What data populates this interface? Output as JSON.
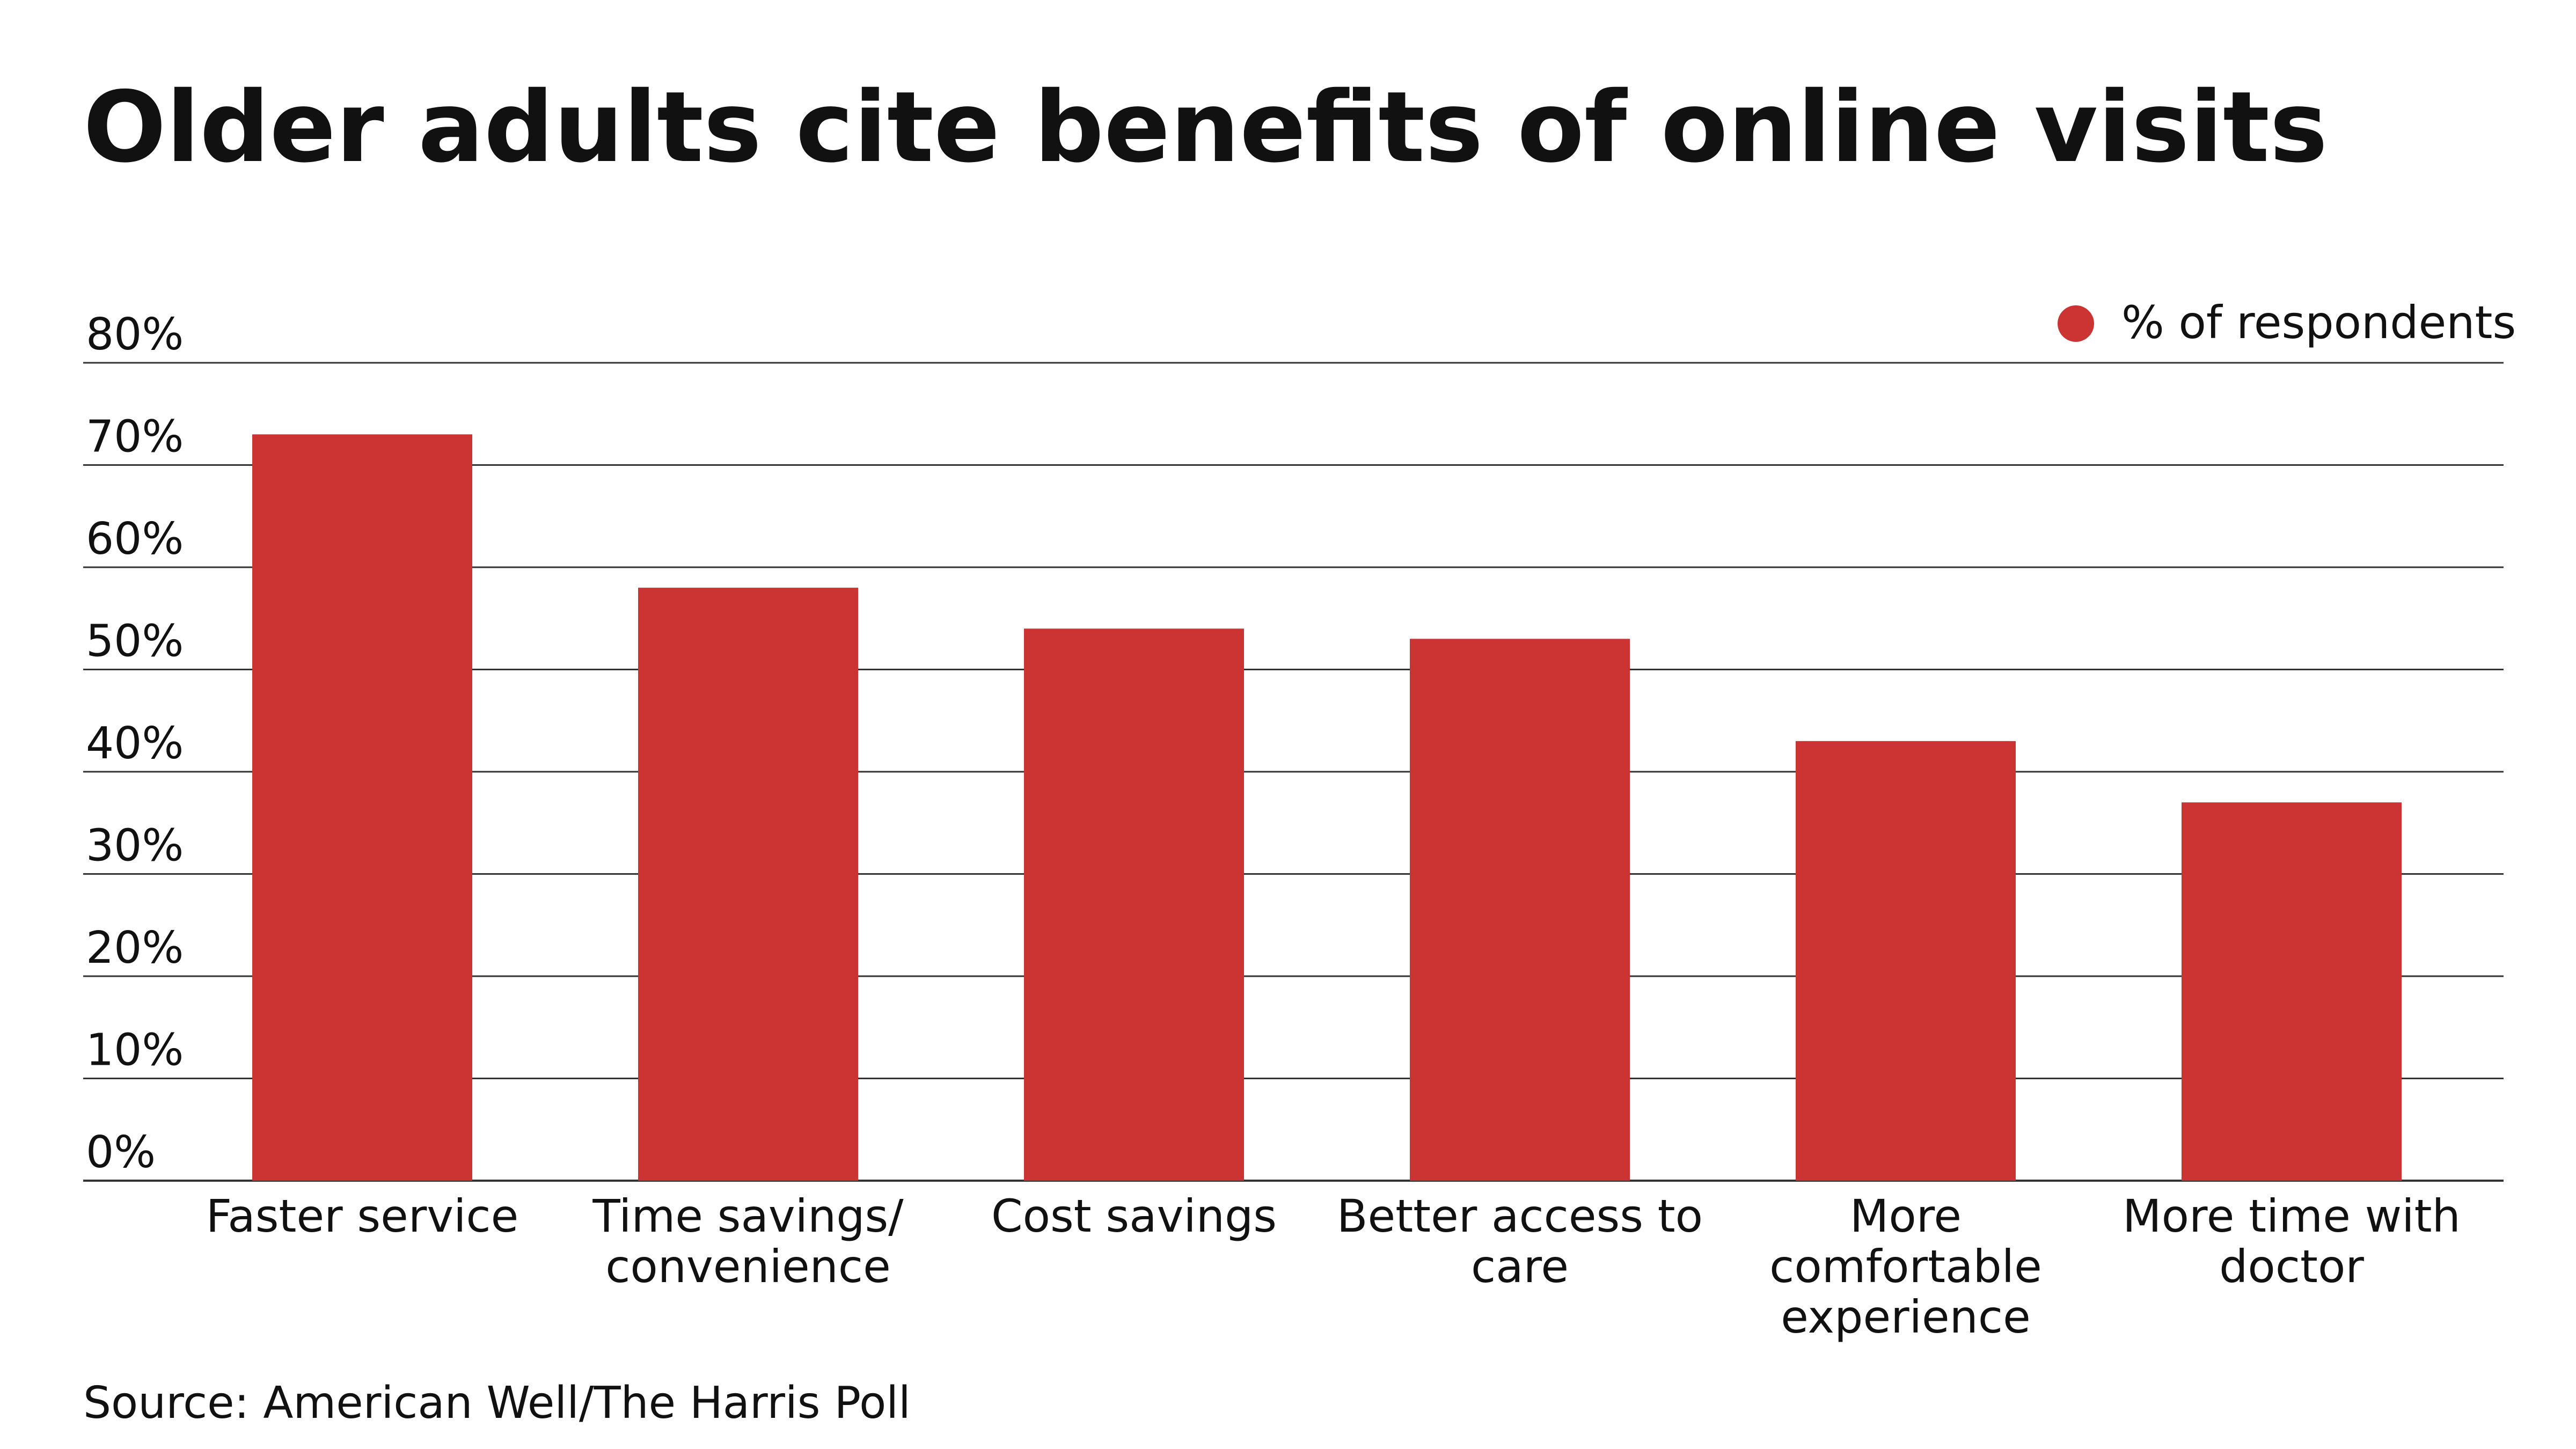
{
  "chart_data": {
    "type": "bar",
    "title": "Older adults cite benefits of online visits",
    "source": "Source: American Well/The Harris Poll",
    "categories": [
      [
        "Faster service"
      ],
      [
        "Time savings/",
        "convenience"
      ],
      [
        "Cost savings"
      ],
      [
        "Better access to",
        "care"
      ],
      [
        "More",
        "comfortable",
        "experience"
      ],
      [
        "More time with",
        "doctor"
      ]
    ],
    "series": [
      {
        "name": "% of respondents",
        "color": "#cc3333",
        "values": [
          73,
          58,
          54,
          53,
          43,
          37
        ]
      }
    ],
    "ylim": [
      0,
      80
    ],
    "yticks": [
      0,
      10,
      20,
      30,
      40,
      50,
      60,
      70,
      80
    ],
    "ytick_labels": [
      "0%",
      "10%",
      "20%",
      "30%",
      "40%",
      "50%",
      "60%",
      "70%",
      "80%"
    ],
    "grid": true,
    "legend_position": "top-right",
    "xlabel": "",
    "ylabel": ""
  }
}
